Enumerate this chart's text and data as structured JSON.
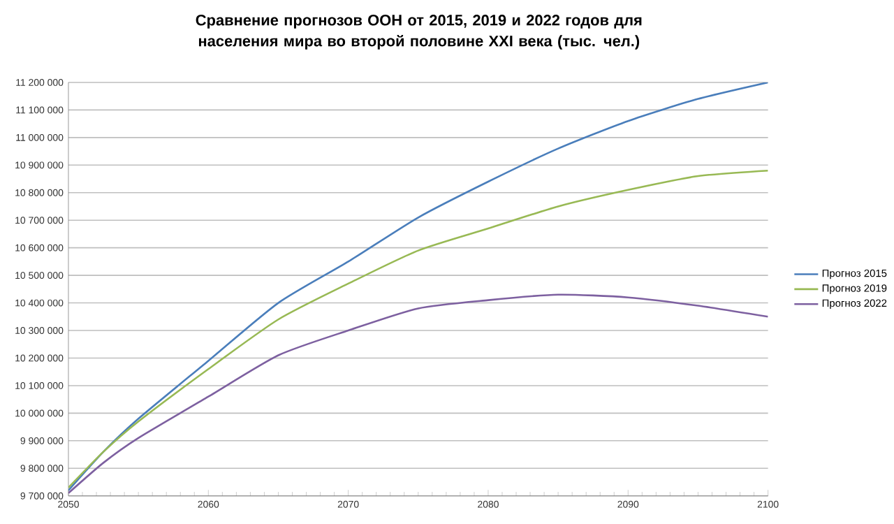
{
  "chart_data": {
    "type": "line",
    "title": "Сравнение прогнозов ООН от 2015, 2019 и 2022 годов для населения мира во второй половине XXI века (тыс. чел.)",
    "x": [
      2050,
      2052.5,
      2055,
      2060,
      2065,
      2070,
      2075,
      2080,
      2085,
      2090,
      2095,
      2100
    ],
    "series": [
      {
        "name": "Прогноз 2015",
        "color": "#4a7ebb",
        "values": [
          9720000,
          9860000,
          9980000,
          10190000,
          10400000,
          10550000,
          10710000,
          10840000,
          10960000,
          11060000,
          11140000,
          11200000
        ]
      },
      {
        "name": "Прогноз 2019",
        "color": "#98b954",
        "values": [
          9730000,
          9860000,
          9970000,
          10160000,
          10340000,
          10470000,
          10590000,
          10670000,
          10750000,
          10810000,
          10860000,
          10880000
        ]
      },
      {
        "name": "Прогноз 2022",
        "color": "#7d60a0",
        "values": [
          9710000,
          9820000,
          9910000,
          10060000,
          10210000,
          10300000,
          10380000,
          10410000,
          10430000,
          10420000,
          10390000,
          10350000
        ]
      }
    ],
    "xlim": [
      2050,
      2100
    ],
    "xticks": [
      2050,
      2060,
      2070,
      2080,
      2090,
      2100
    ],
    "ylim": [
      9700000,
      11200000
    ],
    "yticks": [
      {
        "value": 9700000,
        "label": "9 700 000"
      },
      {
        "value": 9800000,
        "label": "9 800 000"
      },
      {
        "value": 9900000,
        "label": "9 900 000"
      },
      {
        "value": 10000000,
        "label": "10 000 000"
      },
      {
        "value": 10100000,
        "label": "10 100 000"
      },
      {
        "value": 10200000,
        "label": "10 200 000"
      },
      {
        "value": 10300000,
        "label": "10 300 000"
      },
      {
        "value": 10400000,
        "label": "10 400 000"
      },
      {
        "value": 10500000,
        "label": "10 500 000"
      },
      {
        "value": 10600000,
        "label": "10 600 000"
      },
      {
        "value": 10700000,
        "label": "10 700 000"
      },
      {
        "value": 10800000,
        "label": "10 800 000"
      },
      {
        "value": 10900000,
        "label": "10 900 000"
      },
      {
        "value": 11000000,
        "label": "11 000 000"
      },
      {
        "value": 11100000,
        "label": "11 100 000"
      },
      {
        "value": 11200000,
        "label": "11 200 000"
      }
    ],
    "grid": "y",
    "legend": "right",
    "marker": "none",
    "line_style": "solid"
  }
}
